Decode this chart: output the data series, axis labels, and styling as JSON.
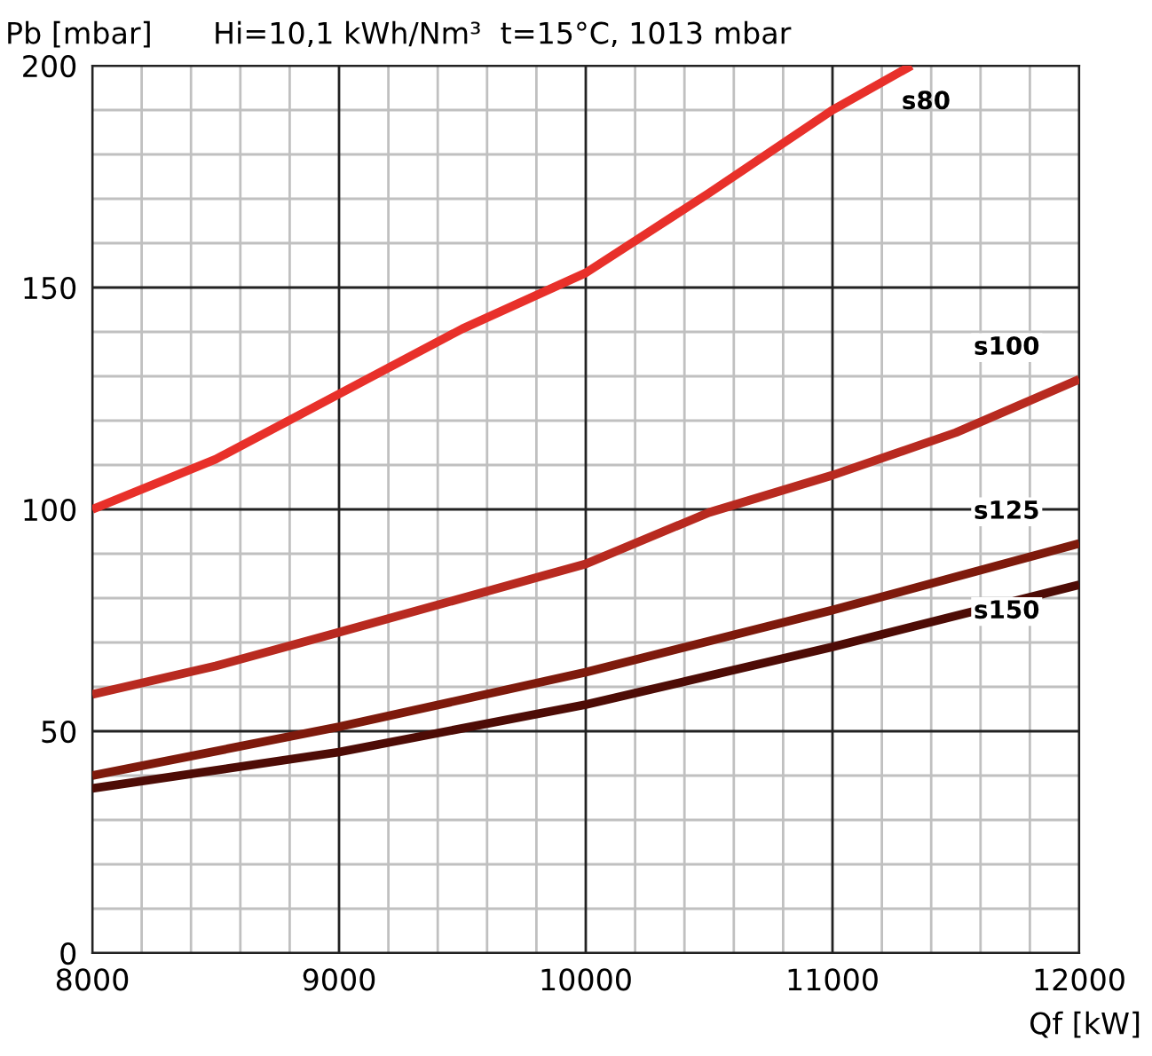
{
  "chart_data": {
    "type": "line",
    "title": "Hi=10,1 kWh/Nm³  t=15°C, 1013 mbar",
    "xlabel": "Qf [kW]",
    "ylabel": "Pb [mbar]",
    "xlim": [
      8000,
      12000
    ],
    "xticks": [
      8000,
      9000,
      10000,
      11000,
      12000
    ],
    "ylim": [
      0,
      200
    ],
    "yticks": [
      0,
      50,
      100,
      150,
      200
    ],
    "grid": true,
    "marker": "none",
    "line_style": "solid",
    "series": [
      {
        "name": "s80",
        "color": "#e8302a",
        "x": [
          8000,
          8500,
          9000,
          9500,
          10000,
          10500,
          11000,
          11320
        ],
        "values": [
          100,
          111.3,
          126,
          140.7,
          153.3,
          171.3,
          190,
          200
        ]
      },
      {
        "name": "s100",
        "color": "#b82a20",
        "x": [
          8000,
          8500,
          9000,
          9500,
          10000,
          10500,
          11000,
          11500,
          12000
        ],
        "values": [
          58.3,
          64.7,
          72.3,
          80,
          87.7,
          99.3,
          107.7,
          117.3,
          129.3
        ]
      },
      {
        "name": "s125",
        "color": "#7e1a0c",
        "x": [
          8000,
          9000,
          10000,
          11000,
          12000
        ],
        "values": [
          40,
          51,
          63.3,
          77.3,
          92.3
        ]
      },
      {
        "name": "s150",
        "color": "#4e0c06",
        "x": [
          8000,
          9000,
          10000,
          11000,
          12000
        ],
        "values": [
          37.1,
          45.3,
          56,
          69,
          83
        ]
      }
    ]
  }
}
